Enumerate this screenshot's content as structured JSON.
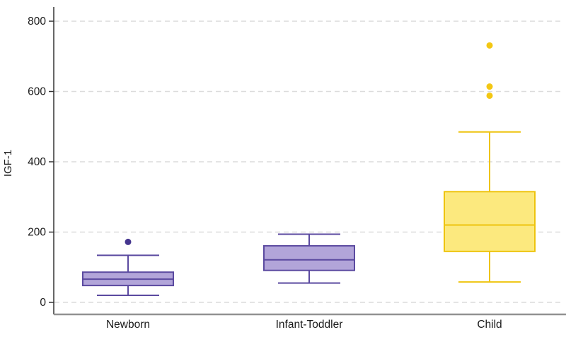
{
  "chart_data": {
    "type": "box",
    "title": "",
    "xlabel": "",
    "ylabel": "IGF-1",
    "ylim": [
      0,
      860
    ],
    "yticks": [
      0,
      200,
      400,
      600,
      800
    ],
    "grid": "horizontal-dashed",
    "legend": "none",
    "categories": [
      "Newborn",
      "Infant-Toddler",
      "Child"
    ],
    "series": [
      {
        "name": "Newborn",
        "min": 20,
        "q1": 48,
        "median": 66,
        "q3": 86,
        "max": 134,
        "outliers": [
          172
        ],
        "fill": "#b2a5d9",
        "stroke": "#5b4aa0",
        "outlier_color": "#45368f"
      },
      {
        "name": "Infant-Toddler",
        "min": 55,
        "q1": 91,
        "median": 121,
        "q3": 161,
        "max": 194,
        "outliers": [],
        "fill": "#b2a5d9",
        "stroke": "#5b4aa0",
        "outlier_color": "#45368f"
      },
      {
        "name": "Child",
        "min": 58,
        "q1": 145,
        "median": 220,
        "q3": 315,
        "max": 485,
        "outliers": [
          588,
          614,
          731
        ],
        "fill": "#fce97e",
        "stroke": "#eec40e",
        "outlier_color": "#f3c713"
      }
    ],
    "colors": {
      "axis_line": "#333333",
      "baseline": "#919191",
      "gridline": "#dcdcdc",
      "tick_text": "#1a1a1a"
    }
  }
}
